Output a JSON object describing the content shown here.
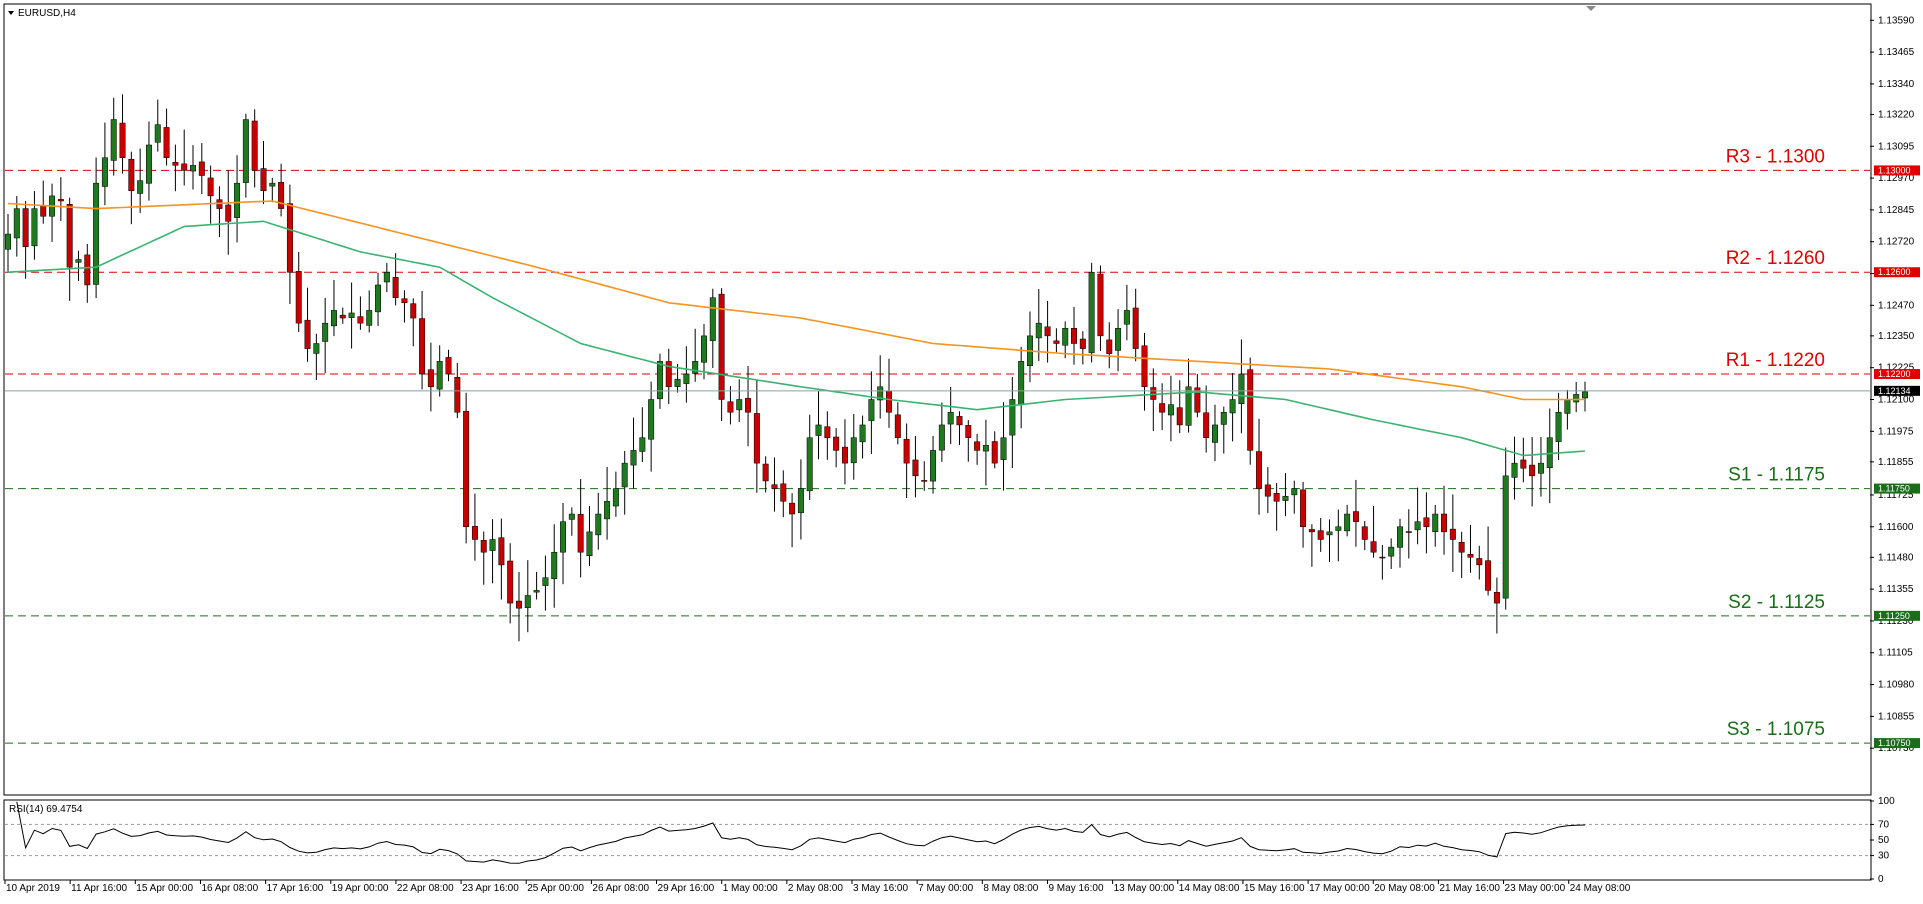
{
  "chart_data": [
    {
      "type": "candlestick",
      "symbol_label": "EURUSD,H4",
      "ylim": [
        1.1055,
        1.1365
      ],
      "y_ticks": [
        "1.13590",
        "1.13465",
        "1.13340",
        "1.13220",
        "1.13095",
        "1.12970",
        "1.12845",
        "1.12720",
        "1.12595",
        "1.12470",
        "1.12350",
        "1.12225",
        "1.12100",
        "1.11975",
        "1.11855",
        "1.11725",
        "1.11600",
        "1.11480",
        "1.11355",
        "1.11230",
        "1.11105",
        "1.10980",
        "1.10855",
        "1.10730"
      ],
      "x_ticks": [
        "10 Apr 2019",
        "11 Apr 16:00",
        "15 Apr 00:00",
        "16 Apr 08:00",
        "17 Apr 16:00",
        "19 Apr 00:00",
        "22 Apr 08:00",
        "23 Apr 16:00",
        "25 Apr 00:00",
        "26 Apr 08:00",
        "29 Apr 16:00",
        "1 May 00:00",
        "2 May 08:00",
        "3 May 16:00",
        "7 May 00:00",
        "8 May 08:00",
        "9 May 16:00",
        "13 May 00:00",
        "14 May 08:00",
        "15 May 16:00",
        "17 May 00:00",
        "20 May 08:00",
        "21 May 16:00",
        "23 May 00:00",
        "24 May 08:00"
      ],
      "current_price": 1.12134,
      "current_price_label": "1.12134",
      "levels": [
        {
          "label": "R3 - 1.1300",
          "value": 1.13,
          "tag": "1.13000",
          "color": "#e00000"
        },
        {
          "label": "R2 - 1.1260",
          "value": 1.126,
          "tag": "1.12600",
          "color": "#e00000"
        },
        {
          "label": "R1 - 1.1220",
          "value": 1.122,
          "tag": "1.12200",
          "color": "#e00000"
        },
        {
          "label": "S1 - 1.1175",
          "value": 1.1175,
          "tag": "1.11750",
          "color": "#1a6e1a"
        },
        {
          "label": "S2 - 1.1125",
          "value": 1.1125,
          "tag": "1.11250",
          "color": "#1a6e1a"
        },
        {
          "label": "S3 - 1.1075",
          "value": 1.1075,
          "tag": "1.10750",
          "color": "#1a6e1a"
        }
      ],
      "ohlc_anchors": [
        [
          0,
          1.1275
        ],
        [
          1,
          1.1285
        ],
        [
          2,
          1.127
        ],
        [
          3,
          1.1285
        ],
        [
          4,
          1.1282
        ],
        [
          5,
          1.129
        ],
        [
          6,
          1.1288
        ],
        [
          7,
          1.1262
        ],
        [
          8,
          1.1265
        ],
        [
          9,
          1.1255
        ],
        [
          10,
          1.1295
        ],
        [
          11,
          1.1305
        ],
        [
          12,
          1.132
        ],
        [
          13,
          1.1305
        ],
        [
          14,
          1.1292
        ],
        [
          15,
          1.1296
        ],
        [
          16,
          1.131
        ],
        [
          17,
          1.1318
        ],
        [
          18,
          1.1305
        ],
        [
          19,
          1.1302
        ],
        [
          20,
          1.13
        ],
        [
          21,
          1.1302
        ],
        [
          22,
          1.1298
        ],
        [
          23,
          1.129
        ],
        [
          24,
          1.1285
        ],
        [
          25,
          1.128
        ],
        [
          26,
          1.1295
        ],
        [
          27,
          1.132
        ],
        [
          28,
          1.13
        ],
        [
          29,
          1.1292
        ],
        [
          30,
          1.1295
        ],
        [
          31,
          1.1285
        ],
        [
          32,
          1.126
        ],
        [
          33,
          1.124
        ],
        [
          34,
          1.123
        ],
        [
          35,
          1.1232
        ],
        [
          36,
          1.124
        ],
        [
          37,
          1.1245
        ],
        [
          38,
          1.1242
        ],
        [
          39,
          1.1244
        ],
        [
          40,
          1.124
        ],
        [
          41,
          1.1245
        ],
        [
          42,
          1.1255
        ],
        [
          43,
          1.126
        ],
        [
          44,
          1.125
        ],
        [
          45,
          1.1248
        ],
        [
          46,
          1.1242
        ],
        [
          47,
          1.122
        ],
        [
          48,
          1.1215
        ],
        [
          49,
          1.1225
        ],
        [
          50,
          1.122
        ],
        [
          51,
          1.1205
        ],
        [
          52,
          1.116
        ],
        [
          53,
          1.1155
        ],
        [
          54,
          1.115
        ],
        [
          55,
          1.1155
        ],
        [
          56,
          1.1145
        ],
        [
          57,
          1.113
        ],
        [
          58,
          1.1128
        ],
        [
          59,
          1.1133
        ],
        [
          60,
          1.1135
        ],
        [
          61,
          1.114
        ],
        [
          62,
          1.115
        ],
        [
          63,
          1.1162
        ],
        [
          64,
          1.1165
        ],
        [
          65,
          1.115
        ],
        [
          66,
          1.1158
        ],
        [
          67,
          1.1165
        ],
        [
          68,
          1.117
        ],
        [
          69,
          1.1175
        ],
        [
          70,
          1.1185
        ],
        [
          71,
          1.119
        ],
        [
          72,
          1.1195
        ],
        [
          73,
          1.121
        ],
        [
          74,
          1.1225
        ],
        [
          75,
          1.1215
        ],
        [
          76,
          1.1218
        ],
        [
          77,
          1.122
        ],
        [
          78,
          1.1225
        ],
        [
          79,
          1.1235
        ],
        [
          80,
          1.125
        ],
        [
          81,
          1.121
        ],
        [
          82,
          1.1205
        ],
        [
          83,
          1.121
        ],
        [
          84,
          1.1205
        ],
        [
          85,
          1.1185
        ],
        [
          86,
          1.1178
        ],
        [
          87,
          1.1175
        ],
        [
          88,
          1.117
        ],
        [
          89,
          1.1165
        ],
        [
          90,
          1.1175
        ],
        [
          91,
          1.1195
        ],
        [
          92,
          1.12
        ],
        [
          93,
          1.1195
        ],
        [
          94,
          1.119
        ],
        [
          95,
          1.1185
        ],
        [
          96,
          1.1195
        ],
        [
          97,
          1.12
        ],
        [
          98,
          1.121
        ],
        [
          99,
          1.1215
        ],
        [
          100,
          1.1205
        ],
        [
          101,
          1.1195
        ],
        [
          102,
          1.1185
        ],
        [
          103,
          1.118
        ],
        [
          104,
          1.1178
        ],
        [
          105,
          1.119
        ],
        [
          106,
          1.12
        ],
        [
          107,
          1.1205
        ],
        [
          108,
          1.12
        ],
        [
          109,
          1.1195
        ],
        [
          110,
          1.119
        ],
        [
          111,
          1.1192
        ],
        [
          112,
          1.1185
        ],
        [
          113,
          1.1195
        ],
        [
          114,
          1.121
        ],
        [
          115,
          1.1225
        ],
        [
          116,
          1.1235
        ],
        [
          117,
          1.124
        ],
        [
          118,
          1.1235
        ],
        [
          119,
          1.1232
        ],
        [
          120,
          1.1238
        ],
        [
          121,
          1.1232
        ],
        [
          122,
          1.123
        ],
        [
          123,
          1.126
        ],
        [
          124,
          1.1235
        ],
        [
          125,
          1.1228
        ],
        [
          126,
          1.1238
        ],
        [
          127,
          1.1245
        ],
        [
          128,
          1.123
        ],
        [
          129,
          1.1215
        ],
        [
          130,
          1.121
        ],
        [
          131,
          1.1205
        ],
        [
          132,
          1.1208
        ],
        [
          133,
          1.12
        ],
        [
          134,
          1.1215
        ],
        [
          135,
          1.1205
        ],
        [
          136,
          1.1195
        ],
        [
          137,
          1.12
        ],
        [
          138,
          1.1205
        ],
        [
          139,
          1.121
        ],
        [
          140,
          1.122
        ],
        [
          141,
          1.119
        ],
        [
          142,
          1.1175
        ],
        [
          143,
          1.1172
        ],
        [
          144,
          1.117
        ],
        [
          145,
          1.1172
        ],
        [
          146,
          1.1175
        ],
        [
          147,
          1.116
        ],
        [
          148,
          1.1158
        ],
        [
          149,
          1.1155
        ],
        [
          150,
          1.1158
        ],
        [
          151,
          1.116
        ],
        [
          152,
          1.1165
        ],
        [
          153,
          1.1162
        ],
        [
          154,
          1.1155
        ],
        [
          155,
          1.115
        ],
        [
          156,
          1.1148
        ],
        [
          157,
          1.1152
        ],
        [
          158,
          1.116
        ],
        [
          159,
          1.1158
        ],
        [
          160,
          1.1162
        ],
        [
          161,
          1.116
        ],
        [
          162,
          1.1165
        ],
        [
          163,
          1.1158
        ],
        [
          164,
          1.1155
        ],
        [
          165,
          1.115
        ],
        [
          166,
          1.1148
        ],
        [
          167,
          1.1145
        ],
        [
          168,
          1.1135
        ],
        [
          169,
          1.113
        ],
        [
          170,
          1.118
        ],
        [
          171,
          1.1185
        ],
        [
          172,
          1.1183
        ],
        [
          173,
          1.118
        ],
        [
          174,
          1.1185
        ],
        [
          175,
          1.1195
        ],
        [
          176,
          1.1205
        ],
        [
          177,
          1.121
        ],
        [
          178,
          1.1212
        ],
        [
          179,
          1.1213
        ]
      ],
      "ma_slow": [
        [
          0,
          1.1287
        ],
        [
          10,
          1.1285
        ],
        [
          30,
          1.1288
        ],
        [
          45,
          1.1275
        ],
        [
          60,
          1.1262
        ],
        [
          75,
          1.1248
        ],
        [
          90,
          1.1242
        ],
        [
          105,
          1.1232
        ],
        [
          120,
          1.1228
        ],
        [
          135,
          1.1225
        ],
        [
          150,
          1.1222
        ],
        [
          165,
          1.1215
        ],
        [
          172,
          1.121
        ],
        [
          180,
          1.121
        ]
      ],
      "ma_fast": [
        [
          0,
          1.126
        ],
        [
          10,
          1.1262
        ],
        [
          20,
          1.1278
        ],
        [
          29,
          1.128
        ],
        [
          40,
          1.1268
        ],
        [
          49,
          1.1262
        ],
        [
          55,
          1.125
        ],
        [
          65,
          1.1232
        ],
        [
          75,
          1.1223
        ],
        [
          90,
          1.1215
        ],
        [
          100,
          1.121
        ],
        [
          110,
          1.1206
        ],
        [
          120,
          1.121
        ],
        [
          135,
          1.1213
        ],
        [
          145,
          1.121
        ],
        [
          155,
          1.1202
        ],
        [
          165,
          1.1195
        ],
        [
          172,
          1.1188
        ],
        [
          180,
          1.119
        ]
      ],
      "indicator": {
        "label": "RSI(14) 69.4754",
        "ylim": [
          0,
          100
        ],
        "levels": [
          70,
          30
        ],
        "y_ticks": [
          "100",
          "70",
          "50",
          "30",
          "0"
        ],
        "line_color": "#000000"
      }
    }
  ]
}
